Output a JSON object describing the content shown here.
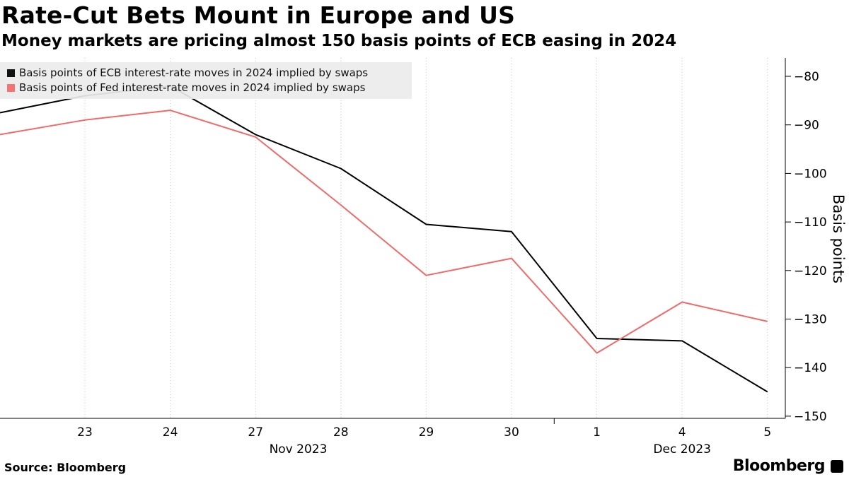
{
  "header": {
    "title": "Rate-Cut Bets Mount in Europe and US",
    "subtitle": "Money markets are pricing almost 150 basis points of ECB easing in 2024"
  },
  "footer": {
    "source": "Source: Bloomberg",
    "brand": "Bloomberg"
  },
  "colors": {
    "ecb": "#000000",
    "fed": "#f06a6a",
    "grid": "#c8c8c8"
  },
  "chart_data": {
    "type": "line",
    "x": [
      "23",
      "24",
      "27",
      "28",
      "29",
      "30",
      "1",
      "4",
      "5"
    ],
    "x_group_labels": [
      {
        "label": "Nov 2023",
        "start": 0,
        "end": 5
      },
      {
        "label": "Dec 2023",
        "start": 6,
        "end": 8
      }
    ],
    "series": [
      {
        "name": "Basis points of ECB interest-rate moves in 2024 implied by swaps",
        "color": "#000000",
        "values": [
          -84,
          -82,
          -92,
          -99,
          -110.5,
          -112,
          -134,
          -134.5,
          -145
        ]
      },
      {
        "name": "Basis points of Fed interest-rate moves in 2024 implied by swaps",
        "color": "#f06a6a",
        "values": [
          -89,
          -87,
          -92.5,
          -106.5,
          -121,
          -117.5,
          -137,
          -126.5,
          -130.5
        ]
      }
    ],
    "leading_values": {
      "ECB": -87.5,
      "Fed": -92
    },
    "ylabel": "Basis points",
    "ylim": [
      -150,
      -75
    ],
    "yticks": [
      -80,
      -90,
      -100,
      -110,
      -120,
      -130,
      -140,
      -150
    ],
    "y_axis_position": "right",
    "grid": "vertical",
    "legend_position": "top-left"
  }
}
